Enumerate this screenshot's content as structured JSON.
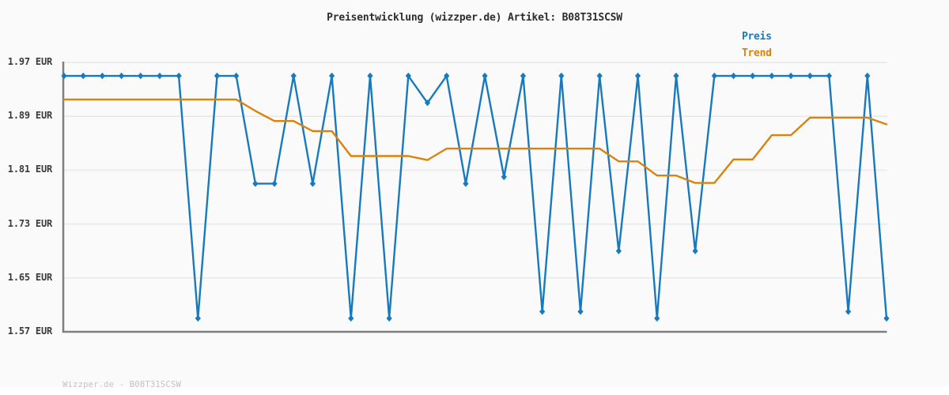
{
  "title": "Preisentwicklung (wizzper.de) Artikel: B08T31SCSW",
  "footer_text": "Wizzper.de - B08T31SCSW",
  "legend": {
    "preis_label": "Preis",
    "trend_label": "Trend"
  },
  "colors": {
    "price_line": "#187abe",
    "trend_line": "#d9830d",
    "grid_line": "#e8e8e8",
    "axis_line": "#7f7f7f",
    "background": "#fafafa",
    "footer_bar": "#ffffff",
    "title_text": "#2d2d2d",
    "tick_text": "#3a3a3a",
    "footer_text_color": "#c3c3c3"
  },
  "chart_data": {
    "type": "line",
    "title": "Preisentwicklung (wizzper.de) Artikel: B08T31SCSW",
    "x": [
      0,
      1,
      2,
      3,
      4,
      5,
      6,
      7,
      8,
      9,
      10,
      11,
      12,
      13,
      14,
      15,
      16,
      17,
      18,
      19,
      20,
      21,
      22,
      23,
      24,
      25,
      26,
      27,
      28,
      29,
      30,
      31,
      32,
      33,
      34,
      35,
      36,
      37,
      38,
      39,
      40,
      41,
      42,
      43
    ],
    "x_tick_labels": [],
    "xlabel": "",
    "ylabel": "",
    "ylim": [
      1.57,
      1.97
    ],
    "grid": true,
    "legend_position": "top-right",
    "y_ticks": [
      {
        "value": 1.97,
        "label": "1.97 EUR"
      },
      {
        "value": 1.89,
        "label": "1.89 EUR"
      },
      {
        "value": 1.81,
        "label": "1.81 EUR"
      },
      {
        "value": 1.73,
        "label": "1.73 EUR"
      },
      {
        "value": 1.65,
        "label": "1.65 EUR"
      },
      {
        "value": 1.57,
        "label": "1.57 EUR"
      }
    ],
    "series": [
      {
        "name": "Preis",
        "color": "#187abe",
        "marker": "diamond",
        "unit": "EUR",
        "values": [
          1.95,
          1.95,
          1.95,
          1.95,
          1.95,
          1.95,
          1.95,
          1.59,
          1.95,
          1.95,
          1.79,
          1.79,
          1.95,
          1.79,
          1.95,
          1.59,
          1.95,
          1.59,
          1.95,
          1.91,
          1.95,
          1.79,
          1.95,
          1.8,
          1.95,
          1.6,
          1.95,
          1.6,
          1.95,
          1.69,
          1.95,
          1.59,
          1.95,
          1.69,
          1.95,
          1.95,
          1.95,
          1.95,
          1.95,
          1.95,
          1.95,
          1.6,
          1.95,
          1.59
        ]
      },
      {
        "name": "Trend",
        "color": "#d9830d",
        "marker": "none",
        "unit": "EUR",
        "values": [
          1.915,
          1.915,
          1.915,
          1.915,
          1.915,
          1.915,
          1.915,
          1.915,
          1.915,
          1.915,
          1.898,
          1.883,
          1.883,
          1.868,
          1.868,
          1.831,
          1.831,
          1.831,
          1.831,
          1.825,
          1.842,
          1.842,
          1.842,
          1.842,
          1.842,
          1.842,
          1.842,
          1.842,
          1.842,
          1.823,
          1.823,
          1.802,
          1.802,
          1.791,
          1.791,
          1.826,
          1.826,
          1.862,
          1.862,
          1.888,
          1.888,
          1.888,
          1.888,
          1.878
        ]
      }
    ]
  }
}
